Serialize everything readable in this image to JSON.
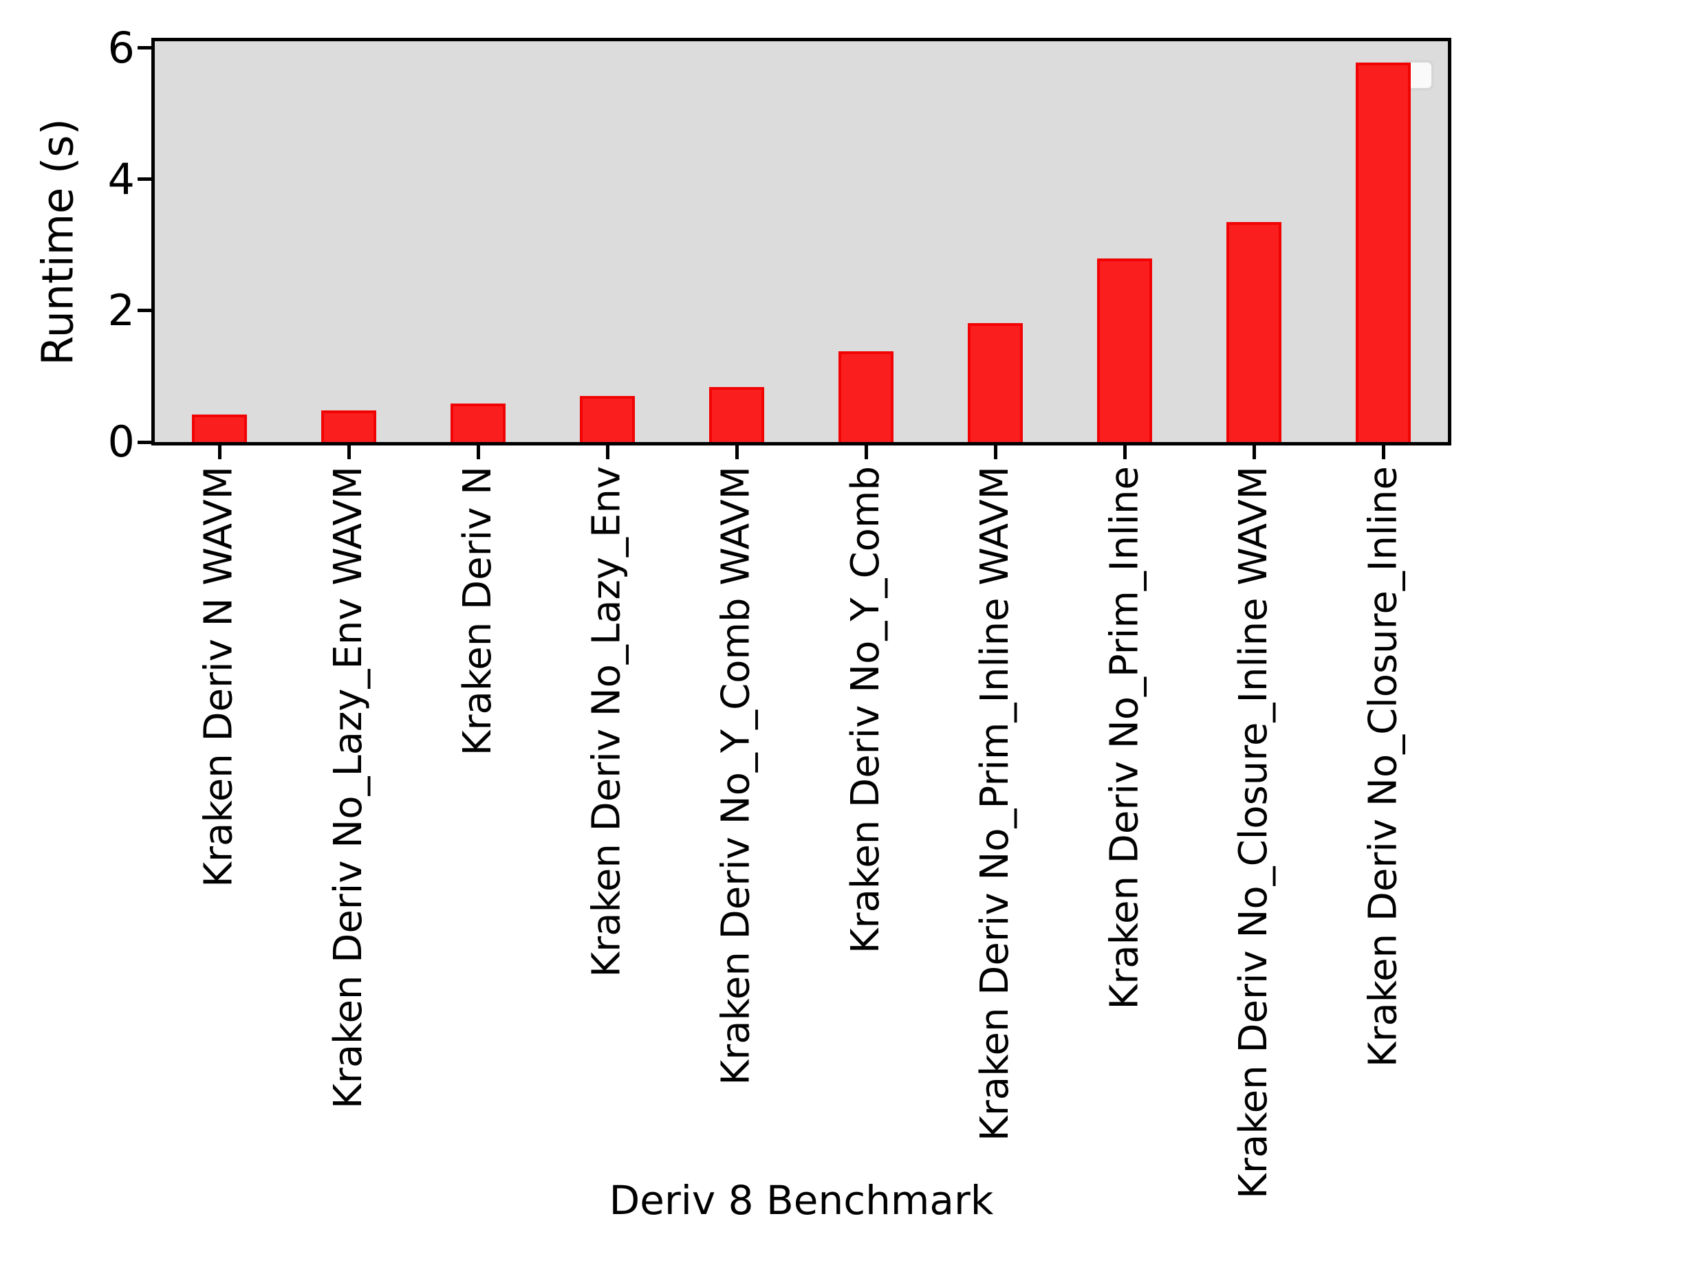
{
  "figure": {
    "ylabel": "Runtime (s)",
    "xlabel": "Deriv 8 Benchmark"
  },
  "chart_data": {
    "type": "bar",
    "title": "",
    "xlabel": "Deriv 8 Benchmark",
    "ylabel": "Runtime (s)",
    "categories": [
      "Kraken Deriv N WAVM",
      "Kraken Deriv No_Lazy_Env WAVM",
      "Kraken Deriv N",
      "Kraken Deriv No_Lazy_Env",
      "Kraken Deriv No_Y_Comb WAVM",
      "Kraken Deriv No_Y_Comb",
      "Kraken Deriv No_Prim_Inline WAVM",
      "Kraken Deriv No_Prim_Inline",
      "Kraken Deriv No_Closure_Inline WAVM",
      "Kraken Deriv No_Closure_Inline"
    ],
    "values": [
      0.42,
      0.48,
      0.59,
      0.7,
      0.84,
      1.38,
      1.81,
      2.79,
      3.35,
      5.78
    ],
    "yticks": [
      0,
      2,
      4,
      6
    ],
    "ylim": [
      0,
      6.1
    ],
    "grid": false,
    "legend": {
      "visible": true,
      "entries": [],
      "position": "upper right"
    },
    "colors": {
      "bar_fill": "#fa1e1e",
      "bar_edge": "#f20303",
      "plot_background": "#dcdcdc",
      "figure_background": "#ffffff",
      "axis": "#000000"
    }
  }
}
